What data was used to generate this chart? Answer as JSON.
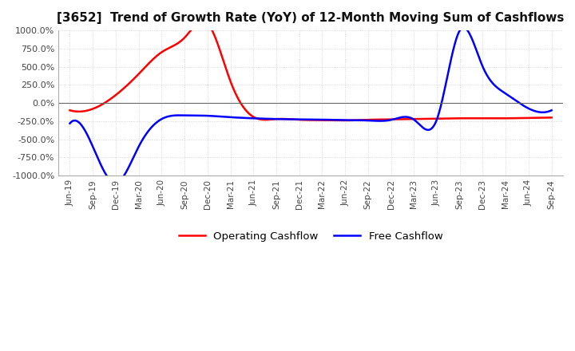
{
  "title": "[3652]  Trend of Growth Rate (YoY) of 12-Month Moving Sum of Cashflows",
  "title_fontsize": 11,
  "ylim": [
    -1000,
    1000
  ],
  "yticks": [
    -1000,
    -750,
    -500,
    -250,
    0,
    250,
    500,
    750,
    1000
  ],
  "background_color": "#ffffff",
  "plot_bg_color": "#ffffff",
  "grid_color": "#cccccc",
  "legend_labels": [
    "Operating Cashflow",
    "Free Cashflow"
  ],
  "legend_colors": [
    "#ff0000",
    "#0000ff"
  ],
  "xtick_labels": [
    "Jun-19",
    "Sep-19",
    "Dec-19",
    "Mar-20",
    "Jun-20",
    "Sep-20",
    "Dec-20",
    "Mar-21",
    "Jun-21",
    "Sep-21",
    "Dec-21",
    "Mar-22",
    "Jun-22",
    "Sep-22",
    "Dec-22",
    "Mar-23",
    "Jun-23",
    "Sep-23",
    "Dec-23",
    "Mar-24",
    "Jun-24",
    "Sep-24"
  ]
}
